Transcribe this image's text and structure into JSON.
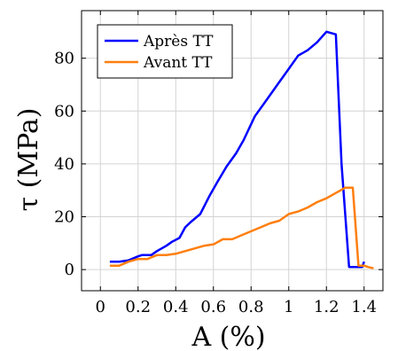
{
  "chart_data": {
    "type": "line",
    "title": "",
    "xlabel": "A (%)",
    "ylabel": "τ (MPa)",
    "xlim": [
      -0.1,
      1.5
    ],
    "ylim": [
      -8,
      98
    ],
    "xticks": [
      0,
      0.2,
      0.4,
      0.6,
      0.8,
      1,
      1.2,
      1.4
    ],
    "xtick_labels": [
      "0",
      "0.2",
      "0.4",
      "0.6",
      "0.8",
      "1",
      "1.2",
      "1.4"
    ],
    "yticks": [
      0,
      20,
      40,
      60,
      80
    ],
    "ytick_labels": [
      "0",
      "20",
      "40",
      "60",
      "80"
    ],
    "grid": true,
    "legend_position": "top-left",
    "series": [
      {
        "name": "Après TT",
        "color": "#0000ff",
        "x": [
          0.05,
          0.1,
          0.15,
          0.2,
          0.22,
          0.27,
          0.3,
          0.35,
          0.38,
          0.42,
          0.45,
          0.48,
          0.53,
          0.58,
          0.62,
          0.67,
          0.72,
          0.76,
          0.82,
          0.88,
          0.94,
          1.0,
          1.05,
          1.1,
          1.15,
          1.2,
          1.25,
          1.28,
          1.32,
          1.36,
          1.39,
          1.4
        ],
        "y": [
          3,
          3,
          3.5,
          5,
          5.5,
          5.5,
          7,
          9,
          10.5,
          12,
          16,
          18,
          21,
          28,
          33,
          39,
          44,
          49,
          58,
          64,
          70,
          76,
          81,
          83,
          86,
          90,
          89,
          40,
          1,
          1,
          1,
          3
        ]
      },
      {
        "name": "Avant TT",
        "color": "#ff7f0e",
        "x": [
          0.05,
          0.1,
          0.15,
          0.2,
          0.25,
          0.3,
          0.35,
          0.4,
          0.45,
          0.5,
          0.55,
          0.6,
          0.65,
          0.7,
          0.75,
          0.8,
          0.85,
          0.9,
          0.95,
          1.0,
          1.05,
          1.1,
          1.15,
          1.2,
          1.25,
          1.3,
          1.34,
          1.37,
          1.4,
          1.42,
          1.45
        ],
        "y": [
          1.5,
          1.5,
          3,
          4,
          4,
          5.5,
          5.5,
          6,
          7,
          8,
          9,
          9.5,
          11.5,
          11.5,
          13,
          14.5,
          16,
          17.5,
          18.5,
          21,
          22,
          23.5,
          25.5,
          27,
          29,
          31,
          31,
          1.5,
          1.5,
          1,
          0.5
        ]
      }
    ]
  }
}
